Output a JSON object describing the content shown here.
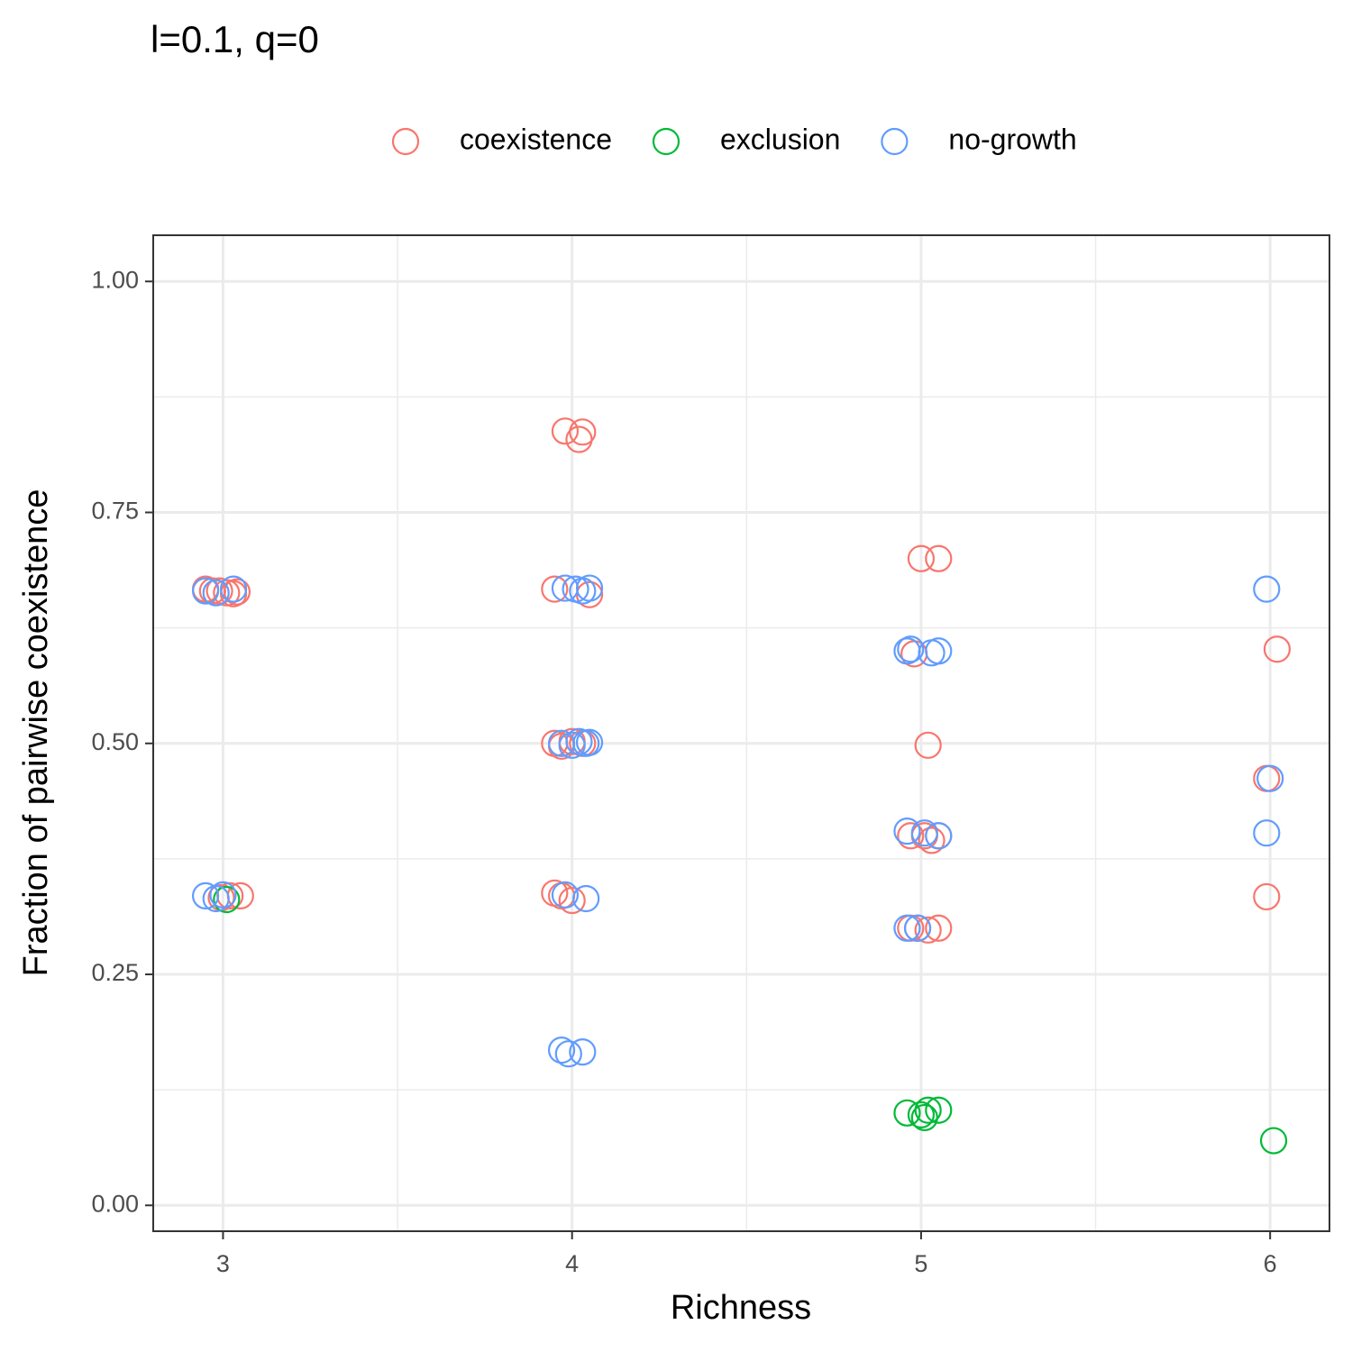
{
  "chart_data": {
    "type": "scatter",
    "title": "l=0.1, q=0",
    "x_label": "Richness",
    "y_label": "Fraction of pairwise coexistence",
    "xlim": [
      2.8,
      6.17
    ],
    "ylim": [
      -0.028,
      1.05
    ],
    "xticks": [
      3,
      4,
      5,
      6
    ],
    "yticks": [
      {
        "value": 0,
        "label": "0.00"
      },
      {
        "value": 0.25,
        "label": "0.25"
      },
      {
        "value": 0.5,
        "label": "0.50"
      },
      {
        "value": 0.75,
        "label": "0.75"
      },
      {
        "value": 1,
        "label": "1.00"
      }
    ],
    "grid": true,
    "legend": "top",
    "series": [
      {
        "name": "coexistence",
        "color": "#F8766D",
        "x": [
          2.95,
          2.97,
          2.99,
          3.01,
          3.03,
          3.04,
          2.995,
          3.02,
          3.05,
          3.98,
          4.03,
          4.02,
          3.95,
          4.05,
          3.95,
          3.97,
          4.0,
          4.03,
          3.95,
          3.97,
          4.0,
          5.0,
          5.05,
          4.98,
          5.02,
          4.97,
          5.01,
          5.03,
          5.05,
          4.97,
          4.99,
          5.02,
          5.05,
          6.02,
          5.99,
          5.99
        ],
        "y": [
          0.667,
          0.665,
          0.665,
          0.663,
          0.662,
          0.664,
          0.333,
          0.335,
          0.335,
          0.838,
          0.837,
          0.829,
          0.667,
          0.661,
          0.5,
          0.497,
          0.502,
          0.5,
          0.338,
          0.335,
          0.33,
          0.7,
          0.7,
          0.597,
          0.498,
          0.4,
          0.4,
          0.395,
          0.4,
          0.3,
          0.3,
          0.298,
          0.3,
          0.602,
          0.462,
          0.334
        ]
      },
      {
        "name": "exclusion",
        "color": "#00BA38",
        "x": [
          3.01,
          4.96,
          5.0,
          5.02,
          5.05,
          5.01,
          6.01
        ],
        "y": [
          0.331,
          0.1,
          0.098,
          0.103,
          0.103,
          0.095,
          0.07
        ]
      },
      {
        "name": "no-growth",
        "color": "#619CFF",
        "x": [
          2.95,
          2.98,
          3.03,
          2.95,
          2.98,
          3.0,
          3.98,
          4.01,
          4.03,
          4.05,
          3.97,
          4.0,
          4.02,
          4.04,
          4.05,
          3.98,
          4.04,
          3.97,
          3.99,
          4.03,
          4.96,
          4.97,
          5.03,
          5.05,
          4.96,
          5.01,
          5.05,
          4.96,
          4.99,
          5.99,
          6.0,
          5.99
        ],
        "y": [
          0.665,
          0.663,
          0.667,
          0.335,
          0.332,
          0.336,
          0.668,
          0.667,
          0.665,
          0.668,
          0.5,
          0.498,
          0.502,
          0.5,
          0.501,
          0.336,
          0.332,
          0.168,
          0.164,
          0.166,
          0.6,
          0.602,
          0.598,
          0.6,
          0.405,
          0.403,
          0.4,
          0.3,
          0.3,
          0.667,
          0.462,
          0.403
        ]
      }
    ]
  }
}
